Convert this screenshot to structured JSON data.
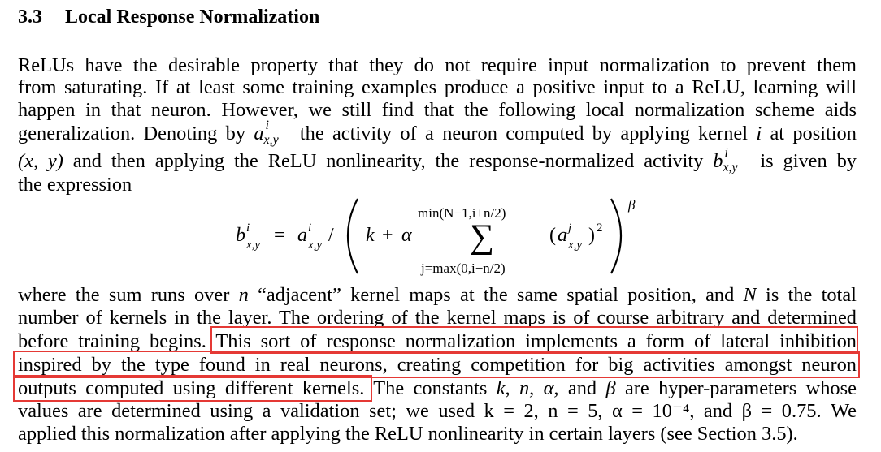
{
  "section": {
    "number": "3.3",
    "title": "Local Response Normalization"
  },
  "paragraph1": [
    "ReLUs have the desirable property that they do not require input normalization to prevent them",
    "from saturating. If at least some training examples produce a positive input to a ReLU, learning will",
    "happen in that neuron.  However, we still find that the following local normalization scheme aids",
    "the expression"
  ],
  "line4": {
    "pre": "generalization. Denoting by",
    "post": "the activity of a neuron computed by applying kernel",
    "post2": "at position"
  },
  "line5": {
    "pre": "and then applying the ReLU nonlinearity, the response-normalized activity",
    "post": "is given by"
  },
  "equation": {
    "upper": "min(N−1,i+n/2)",
    "lower": "j=max(0,i−n/2)",
    "exponent": "β"
  },
  "paragraph2": {
    "line1": {
      "a": "where the sum runs over",
      "b": "“adjacent” kernel maps at the same spatial position, and",
      "c": "is the total"
    },
    "line2": "number of kernels in the layer. The ordering of the kernel maps is of course arbitrary and determined",
    "line3_pre": "before training begins.",
    "line3_hl": "This sort of response normalization implements a form of lateral inhibition",
    "line4_hl": "inspired by the type found in real neurons, creating competition for big activities amongst neuron",
    "line5_hl": "outputs computed using different kernels.",
    "line5_post_a": "The constants",
    "line5_post_b": "and",
    "line5_post_c": "are hyper-parameters whose",
    "line6": "values are determined using a validation set; we used",
    "line6_values": "k = 2, n = 5, α = 10⁻⁴, and β = 0.75. We",
    "line7": "applied this normalization after applying the ReLU nonlinearity in certain layers (see Section 3.5)."
  },
  "highlight_color": "#e53935"
}
